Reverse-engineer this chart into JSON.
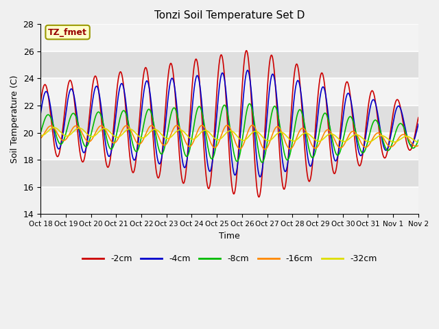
{
  "title": "Tonzi Soil Temperature Set D",
  "xlabel": "Time",
  "ylabel": "Soil Temperature (C)",
  "ylim": [
    14,
    28
  ],
  "xlim": [
    0,
    15
  ],
  "xtick_labels": [
    "Oct 18",
    "Oct 19",
    "Oct 20",
    "Oct 21",
    "Oct 22",
    "Oct 23",
    "Oct 24",
    "Oct 25",
    "Oct 26",
    "Oct 27",
    "Oct 28",
    "Oct 29",
    "Oct 30",
    "Oct 31",
    "Nov 1",
    "Nov 2"
  ],
  "ytick_vals": [
    14,
    16,
    18,
    20,
    22,
    24,
    26,
    28
  ],
  "series": [
    {
      "label": "-2cm",
      "color": "#cc0000",
      "amplitude": 5.5,
      "phase": -0.5,
      "mean": 21.0,
      "amp_peak_day": 8.5,
      "amp_start": 2.5,
      "amp_end": 1.5
    },
    {
      "label": "-4cm",
      "color": "#0000cc",
      "amplitude": 4.0,
      "phase": -0.2,
      "mean": 21.0,
      "amp_peak_day": 8.5,
      "amp_start": 2.0,
      "amp_end": 1.2
    },
    {
      "label": "-8cm",
      "color": "#00bb00",
      "amplitude": 2.2,
      "phase": 0.3,
      "mean": 20.3,
      "amp_peak_day": 8.5,
      "amp_start": 1.0,
      "amp_end": 0.8
    },
    {
      "label": "-16cm",
      "color": "#ff8800",
      "amplitude": 0.9,
      "phase": 1.0,
      "mean": 20.0,
      "amp_peak_day": 8.5,
      "amp_start": 0.5,
      "amp_end": 0.4
    },
    {
      "label": "-32cm",
      "color": "#dddd00",
      "amplitude": 0.35,
      "phase": 1.8,
      "mean": 20.1,
      "amp_peak_day": 8.5,
      "amp_start": 0.3,
      "amp_end": 0.2
    }
  ],
  "annotation_text": "TZ_fmet",
  "bg_outer": "#f0f0f0",
  "bg_inner": "#e8e8e8",
  "legend_colors": [
    "#cc0000",
    "#0000cc",
    "#00bb00",
    "#ff8800",
    "#dddd00"
  ],
  "legend_labels": [
    "-2cm",
    "-4cm",
    "-8cm",
    "-16cm",
    "-32cm"
  ]
}
